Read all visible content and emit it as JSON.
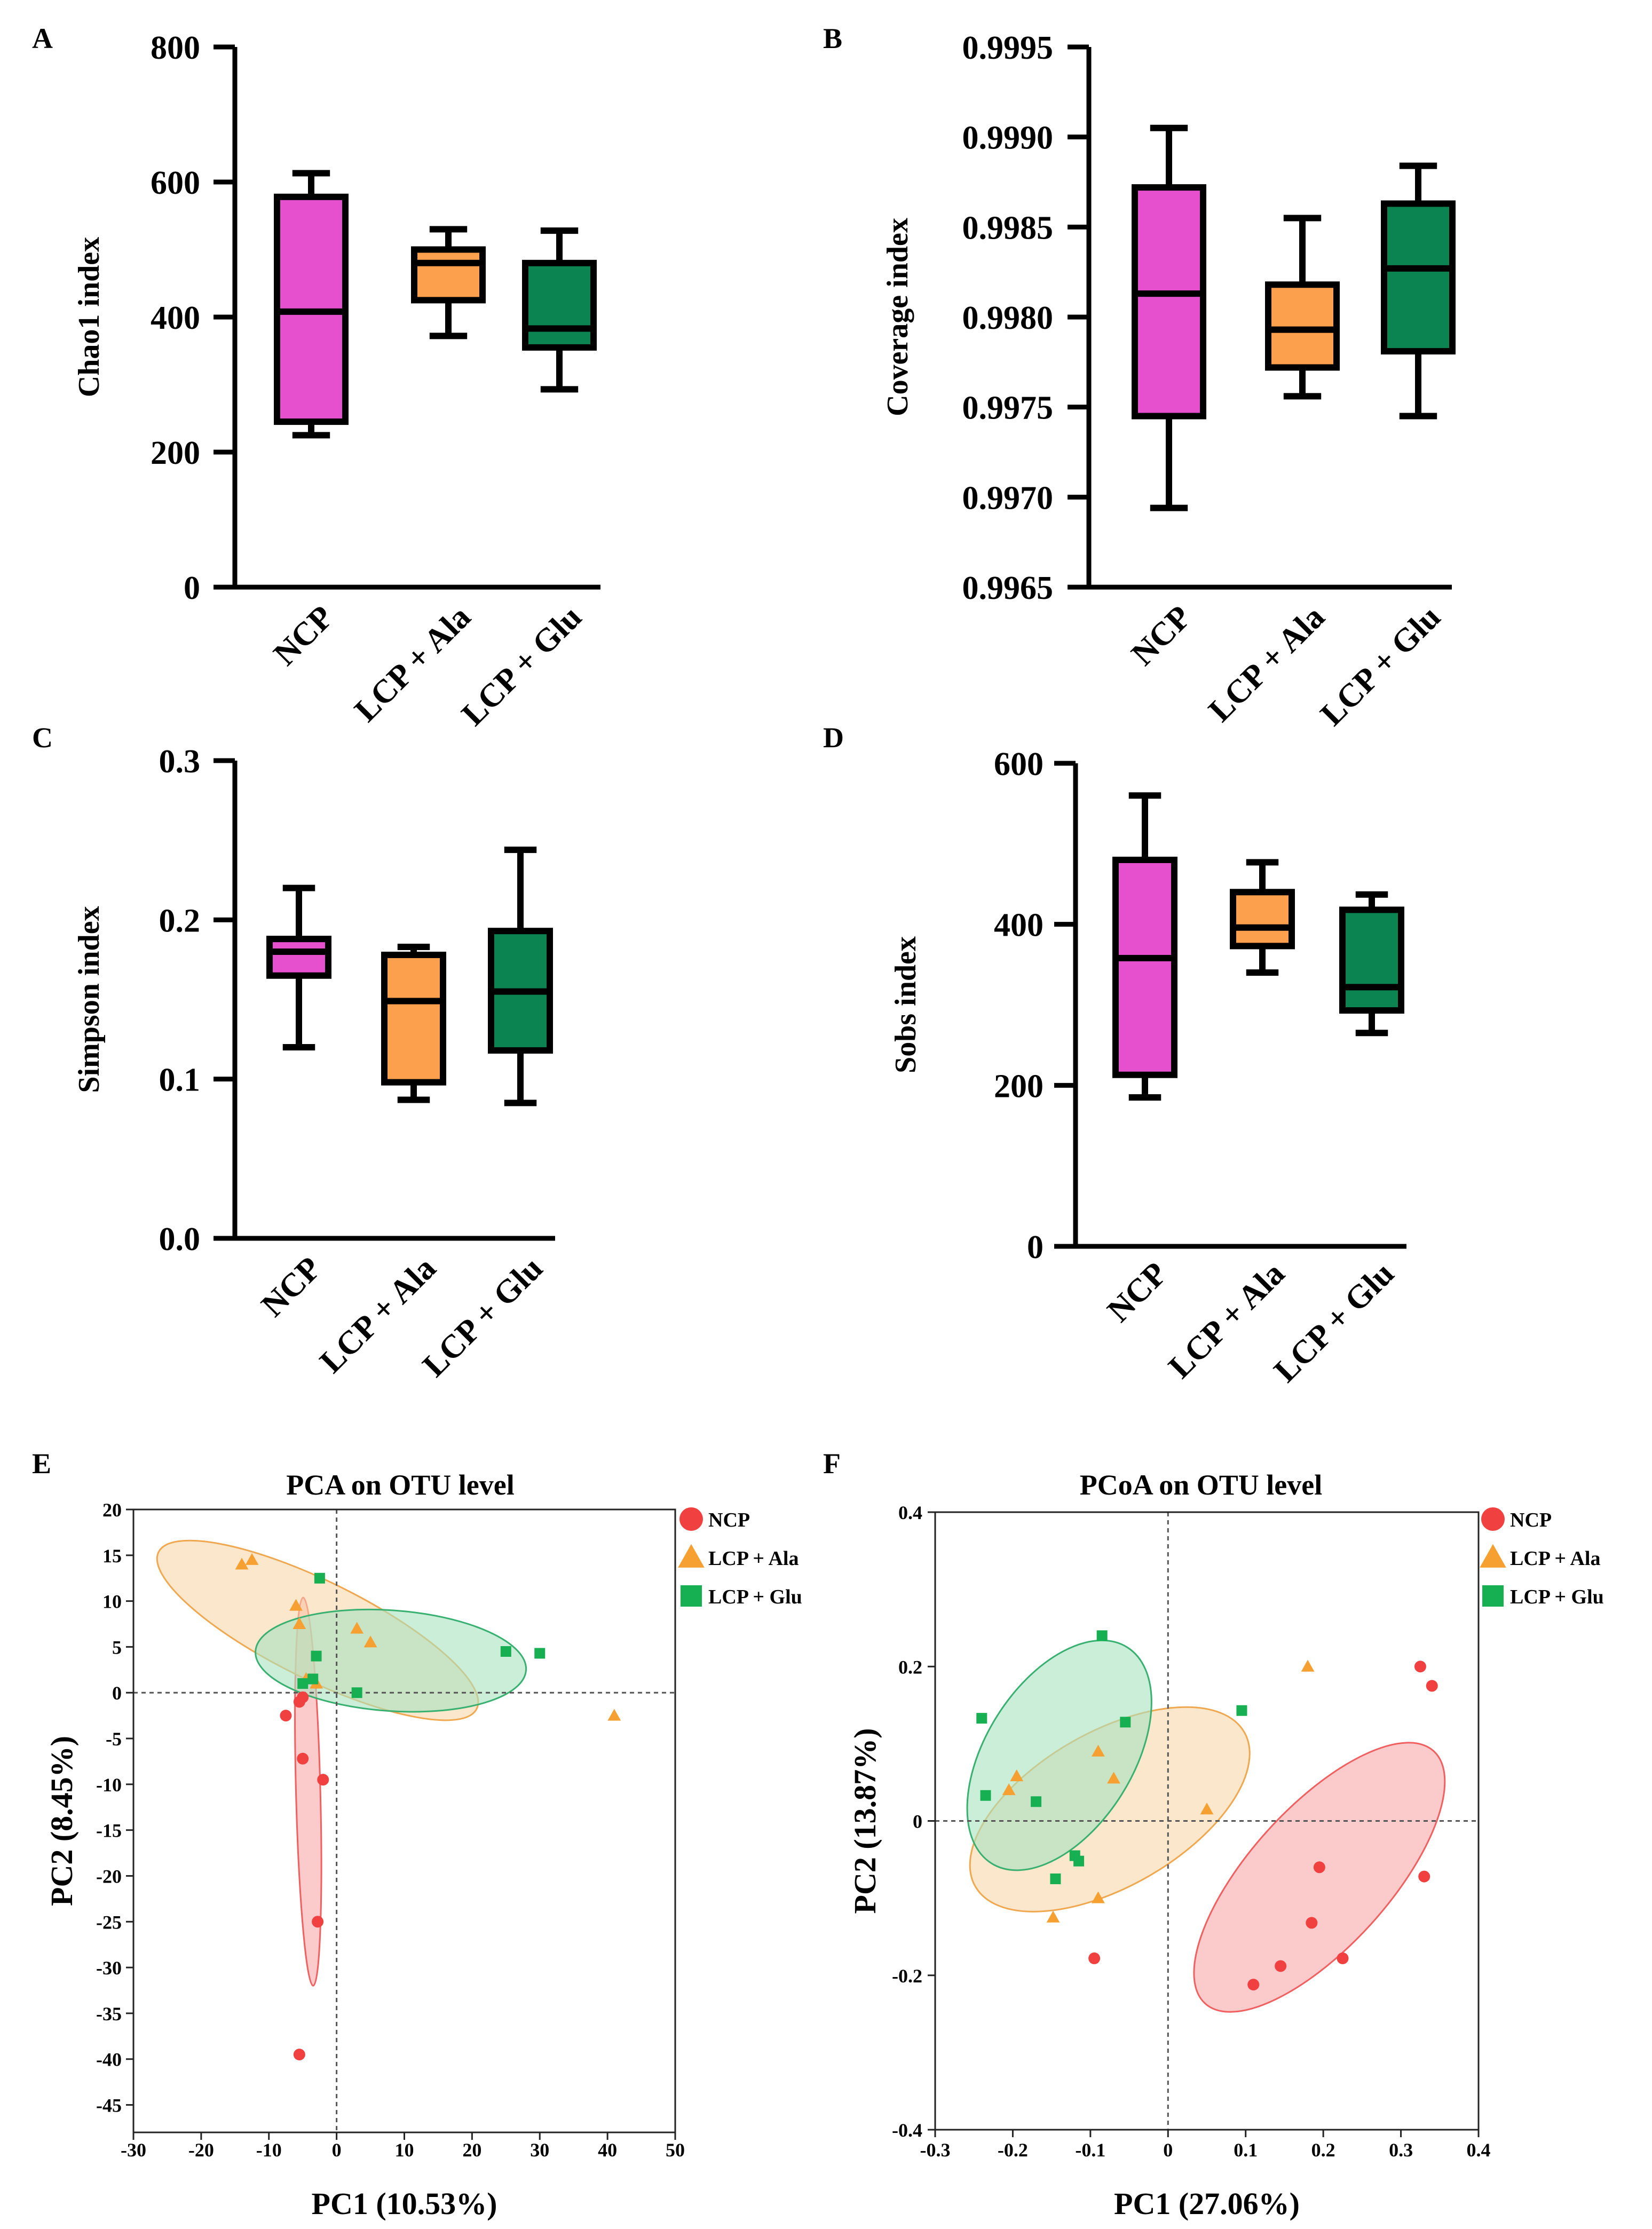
{
  "chart_data": [
    {
      "id": "A",
      "panel_label": "A",
      "type": "box",
      "ylabel": "Chao1 index",
      "ylim": [
        0,
        800
      ],
      "yticks": [
        0,
        200,
        400,
        600,
        800
      ],
      "ytick_labels": [
        "0",
        "200",
        "400",
        "600",
        "800"
      ],
      "categories": [
        "NCP",
        "LCP + Ala",
        "LCP + Glu"
      ],
      "boxes": [
        {
          "group": "NCP",
          "min": 225,
          "q1": 245,
          "median": 408,
          "q3": 578,
          "max": 613,
          "color": "#E64FCE"
        },
        {
          "group": "LCP + Ala",
          "min": 372,
          "q1": 425,
          "median": 480,
          "q3": 500,
          "max": 530,
          "color": "#FCA04D"
        },
        {
          "group": "LCP + Glu",
          "min": 293,
          "q1": 355,
          "median": 383,
          "q3": 480,
          "max": 528,
          "color": "#0C8452"
        }
      ]
    },
    {
      "id": "B",
      "panel_label": "B",
      "type": "box",
      "ylabel": "Coverage index",
      "ylim": [
        0.9965,
        0.9995
      ],
      "yticks": [
        0.9965,
        0.997,
        0.9975,
        0.998,
        0.9985,
        0.999,
        0.9995
      ],
      "ytick_labels": [
        "0.9965",
        "0.9970",
        "0.9975",
        "0.9980",
        "0.9985",
        "0.9990",
        "0.9995"
      ],
      "categories": [
        "NCP",
        "LCP + Ala",
        "LCP + Glu"
      ],
      "boxes": [
        {
          "group": "NCP",
          "min": 0.99694,
          "q1": 0.99745,
          "median": 0.99813,
          "q3": 0.99872,
          "max": 0.99905,
          "color": "#E64FCE"
        },
        {
          "group": "LCP + Ala",
          "min": 0.99756,
          "q1": 0.99772,
          "median": 0.99793,
          "q3": 0.99818,
          "max": 0.99855,
          "color": "#FCA04D"
        },
        {
          "group": "LCP + Glu",
          "min": 0.99745,
          "q1": 0.99781,
          "median": 0.99827,
          "q3": 0.99863,
          "max": 0.99884,
          "color": "#0C8452"
        }
      ]
    },
    {
      "id": "C",
      "panel_label": "C",
      "type": "box",
      "ylabel": "Simpson index",
      "ylim": [
        0,
        0.3
      ],
      "yticks": [
        0,
        0.1,
        0.2,
        0.3
      ],
      "ytick_labels": [
        "0.0",
        "0.1",
        "0.2",
        "0.3"
      ],
      "categories": [
        "NCP",
        "LCP + Ala",
        "LCP + Glu"
      ],
      "boxes": [
        {
          "group": "NCP",
          "min": 0.12,
          "q1": 0.165,
          "median": 0.18,
          "q3": 0.188,
          "max": 0.22,
          "color": "#E64FCE"
        },
        {
          "group": "LCP + Ala",
          "min": 0.087,
          "q1": 0.098,
          "median": 0.149,
          "q3": 0.178,
          "max": 0.183,
          "color": "#FCA04D"
        },
        {
          "group": "LCP + Glu",
          "min": 0.085,
          "q1": 0.118,
          "median": 0.155,
          "q3": 0.193,
          "max": 0.244,
          "color": "#0C8452"
        }
      ]
    },
    {
      "id": "D",
      "panel_label": "D",
      "type": "box",
      "ylabel": "Sobs index",
      "ylim": [
        0,
        600
      ],
      "yticks": [
        0,
        200,
        400,
        600
      ],
      "ytick_labels": [
        "0",
        "200",
        "400",
        "600"
      ],
      "categories": [
        "NCP",
        "LCP + Ala",
        "LCP + Glu"
      ],
      "boxes": [
        {
          "group": "NCP",
          "min": 185,
          "q1": 213,
          "median": 358,
          "q3": 480,
          "max": 560,
          "color": "#E64FCE"
        },
        {
          "group": "LCP + Ala",
          "min": 340,
          "q1": 373,
          "median": 396,
          "q3": 440,
          "max": 477,
          "color": "#FCA04D"
        },
        {
          "group": "LCP + Glu",
          "min": 265,
          "q1": 293,
          "median": 322,
          "q3": 418,
          "max": 437,
          "color": "#0C8452"
        }
      ]
    },
    {
      "id": "E",
      "panel_label": "E",
      "type": "scatter",
      "title": "PCA on OTU level",
      "xlabel": "PC1 (10.53%)",
      "ylabel": "PC2 (8.45%)",
      "xlim": [
        -30,
        50
      ],
      "ylim": [
        -48,
        20
      ],
      "xticks": [
        -30,
        -20,
        -10,
        0,
        10,
        20,
        30,
        40,
        50
      ],
      "yticks": [
        20,
        15,
        10,
        5,
        0,
        -5,
        -10,
        -15,
        -20,
        -25,
        -30,
        -35,
        -40,
        -45
      ],
      "legend": {
        "position": "top-right outside",
        "entries": [
          "NCP",
          "LCP + Ala",
          "LCP + Glu"
        ]
      },
      "series": [
        {
          "name": "NCP",
          "marker": "circle",
          "color": "#F04040",
          "points": [
            [
              -7.5,
              -2.5
            ],
            [
              -5.5,
              -1
            ],
            [
              -5,
              -0.5
            ],
            [
              -5,
              -7.2
            ],
            [
              -2,
              -9.5
            ],
            [
              -2.8,
              -25
            ],
            [
              -5.5,
              -39.5
            ]
          ],
          "ellipse": {
            "cx": -4.2,
            "cy": -10.8,
            "rx": 21.2,
            "ry": 1.8,
            "angle": -88,
            "fill": "#F8A9A9",
            "stroke": "#F06060"
          }
        },
        {
          "name": "LCP + Ala",
          "marker": "triangle",
          "color": "#F5A030",
          "points": [
            [
              -14,
              14
            ],
            [
              -12.5,
              14.5
            ],
            [
              -6,
              9.5
            ],
            [
              -5.5,
              7.5
            ],
            [
              -4.5,
              1.5
            ],
            [
              -3,
              1
            ],
            [
              3,
              7
            ],
            [
              5,
              5.5
            ],
            [
              41,
              -2.5
            ]
          ],
          "ellipse": {
            "cx": -2.8,
            "cy": 6.8,
            "rx": 25,
            "ry": 5.5,
            "angle": -20,
            "fill": "#F9D7A8",
            "stroke": "#F0A850"
          }
        },
        {
          "name": "LCP + Glu",
          "marker": "square",
          "color": "#16B052",
          "points": [
            [
              -2.5,
              12.5
            ],
            [
              -5,
              1
            ],
            [
              -3.5,
              1.5
            ],
            [
              -3,
              4
            ],
            [
              3,
              0
            ],
            [
              25,
              4.5
            ],
            [
              30,
              4.3
            ]
          ],
          "ellipse": {
            "cx": 8,
            "cy": 3.5,
            "rx": 20,
            "ry": 5.5,
            "angle": -3,
            "fill": "#A8E2C0",
            "stroke": "#38B070"
          }
        }
      ]
    },
    {
      "id": "F",
      "panel_label": "F",
      "type": "scatter",
      "title": "PCoA on OTU level",
      "xlabel": "PC1 (27.06%)",
      "ylabel": "PC2 (13.87%)",
      "xlim": [
        -0.3,
        0.4
      ],
      "ylim": [
        -0.4,
        0.4
      ],
      "xticks": [
        -0.3,
        -0.2,
        -0.1,
        0,
        0.1,
        0.2,
        0.3,
        0.4
      ],
      "xtick_labels": [
        "-0.3",
        "-0.2",
        "-0.1",
        "0",
        "0.1",
        "0.2",
        "0.3",
        "0.4"
      ],
      "yticks": [
        0.4,
        0.2,
        0,
        -0.2,
        -0.4
      ],
      "ytick_labels": [
        "0.4",
        "0.2",
        "0",
        "-0.2",
        "-0.4"
      ],
      "legend": {
        "position": "top-right outside",
        "entries": [
          "NCP",
          "LCP + Ala",
          "LCP + Glu"
        ]
      },
      "series": [
        {
          "name": "NCP",
          "marker": "circle",
          "color": "#F04040",
          "points": [
            [
              0.325,
              0.2
            ],
            [
              0.34,
              0.175
            ],
            [
              0.195,
              -0.06
            ],
            [
              0.33,
              -0.072
            ],
            [
              0.185,
              -0.132
            ],
            [
              0.145,
              -0.188
            ],
            [
              0.225,
              -0.178
            ],
            [
              0.11,
              -0.212
            ],
            [
              -0.095,
              -0.178
            ]
          ],
          "ellipse": {
            "cx": 0.195,
            "cy": -0.073,
            "rx": 0.22,
            "ry": 0.09,
            "angle": 48,
            "fill": "#F8A9A9",
            "stroke": "#F06060"
          }
        },
        {
          "name": "LCP + Ala",
          "marker": "triangle",
          "color": "#F5A030",
          "points": [
            [
              -0.195,
              0.058
            ],
            [
              -0.205,
              0.04
            ],
            [
              -0.09,
              0.09
            ],
            [
              -0.07,
              0.055
            ],
            [
              0.05,
              0.015
            ],
            [
              -0.09,
              -0.1
            ],
            [
              -0.148,
              -0.125
            ],
            [
              0.18,
              0.2
            ]
          ],
          "ellipse": {
            "cx": -0.075,
            "cy": 0.015,
            "rx": 0.2,
            "ry": 0.1,
            "angle": 30,
            "fill": "#F9D7A8",
            "stroke": "#F0A850"
          }
        },
        {
          "name": "LCP + Glu",
          "marker": "square",
          "color": "#16B052",
          "points": [
            [
              -0.24,
              0.133
            ],
            [
              -0.235,
              0.033
            ],
            [
              -0.085,
              0.24
            ],
            [
              -0.055,
              0.128
            ],
            [
              -0.17,
              0.025
            ],
            [
              -0.12,
              -0.045
            ],
            [
              -0.115,
              -0.052
            ],
            [
              -0.145,
              -0.075
            ],
            [
              0.095,
              0.143
            ]
          ],
          "ellipse": {
            "cx": -0.14,
            "cy": 0.085,
            "rx": 0.165,
            "ry": 0.095,
            "angle": 58,
            "fill": "#A8E2C0",
            "stroke": "#38B070"
          }
        }
      ]
    }
  ]
}
